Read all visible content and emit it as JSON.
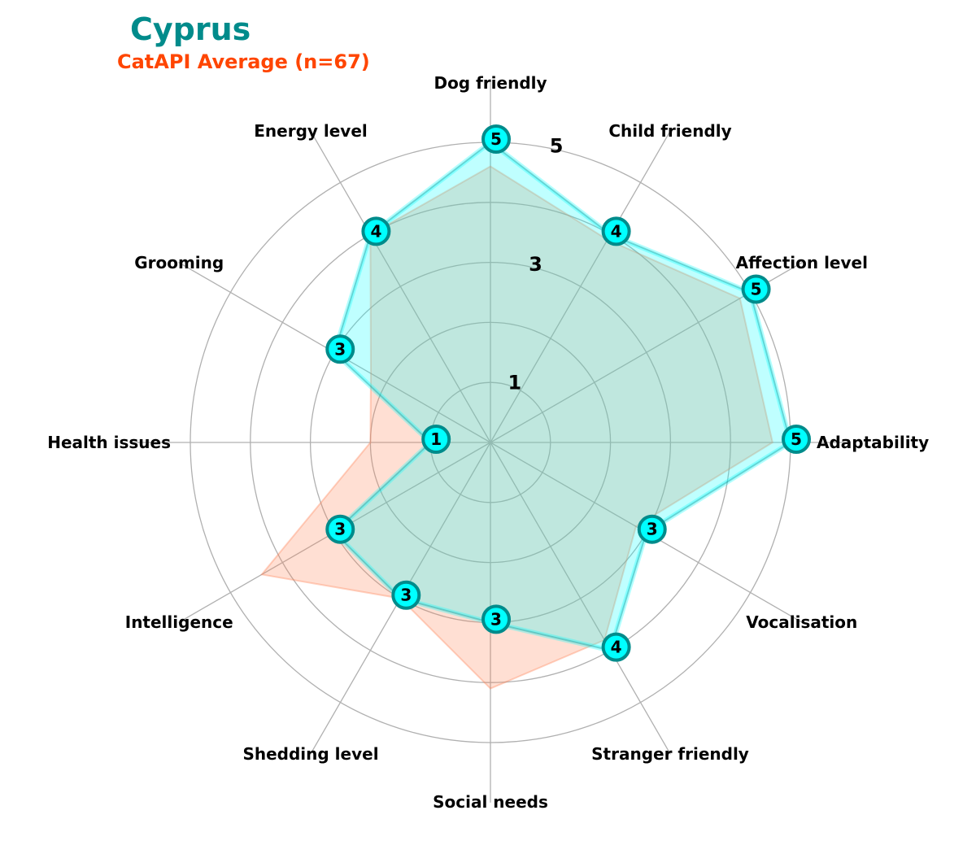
{
  "chart_data": {
    "type": "radar",
    "title": "Cyprus",
    "subtitle": "CatAPI Average (n=67)",
    "axes": [
      "Adaptability",
      "Affection level",
      "Child friendly",
      "Dog friendly",
      "Energy level",
      "Grooming",
      "Health issues",
      "Intelligence",
      "Shedding level",
      "Social needs",
      "Stranger friendly",
      "Vocalisation"
    ],
    "radial_range": [
      0,
      5
    ],
    "radial_ticks": [
      1,
      3,
      5
    ],
    "grid": true,
    "series": [
      {
        "role": "breed",
        "values": [
          5,
          5,
          4,
          5,
          4,
          3,
          1,
          3,
          3,
          3,
          4,
          3
        ],
        "color": "#00ffff",
        "edge_color": "#008b8b",
        "show_point_labels": true
      },
      {
        "role": "average",
        "values": [
          4.7,
          4.8,
          3.9,
          4.6,
          4.0,
          2.3,
          2.0,
          4.4,
          3.0,
          4.1,
          3.8,
          2.8
        ],
        "color": "#ff7f50"
      }
    ],
    "colors": {
      "title": "#008b8b",
      "subtitle": "#ff4500",
      "grid": "#b0b0b0",
      "label": "#000000"
    }
  }
}
